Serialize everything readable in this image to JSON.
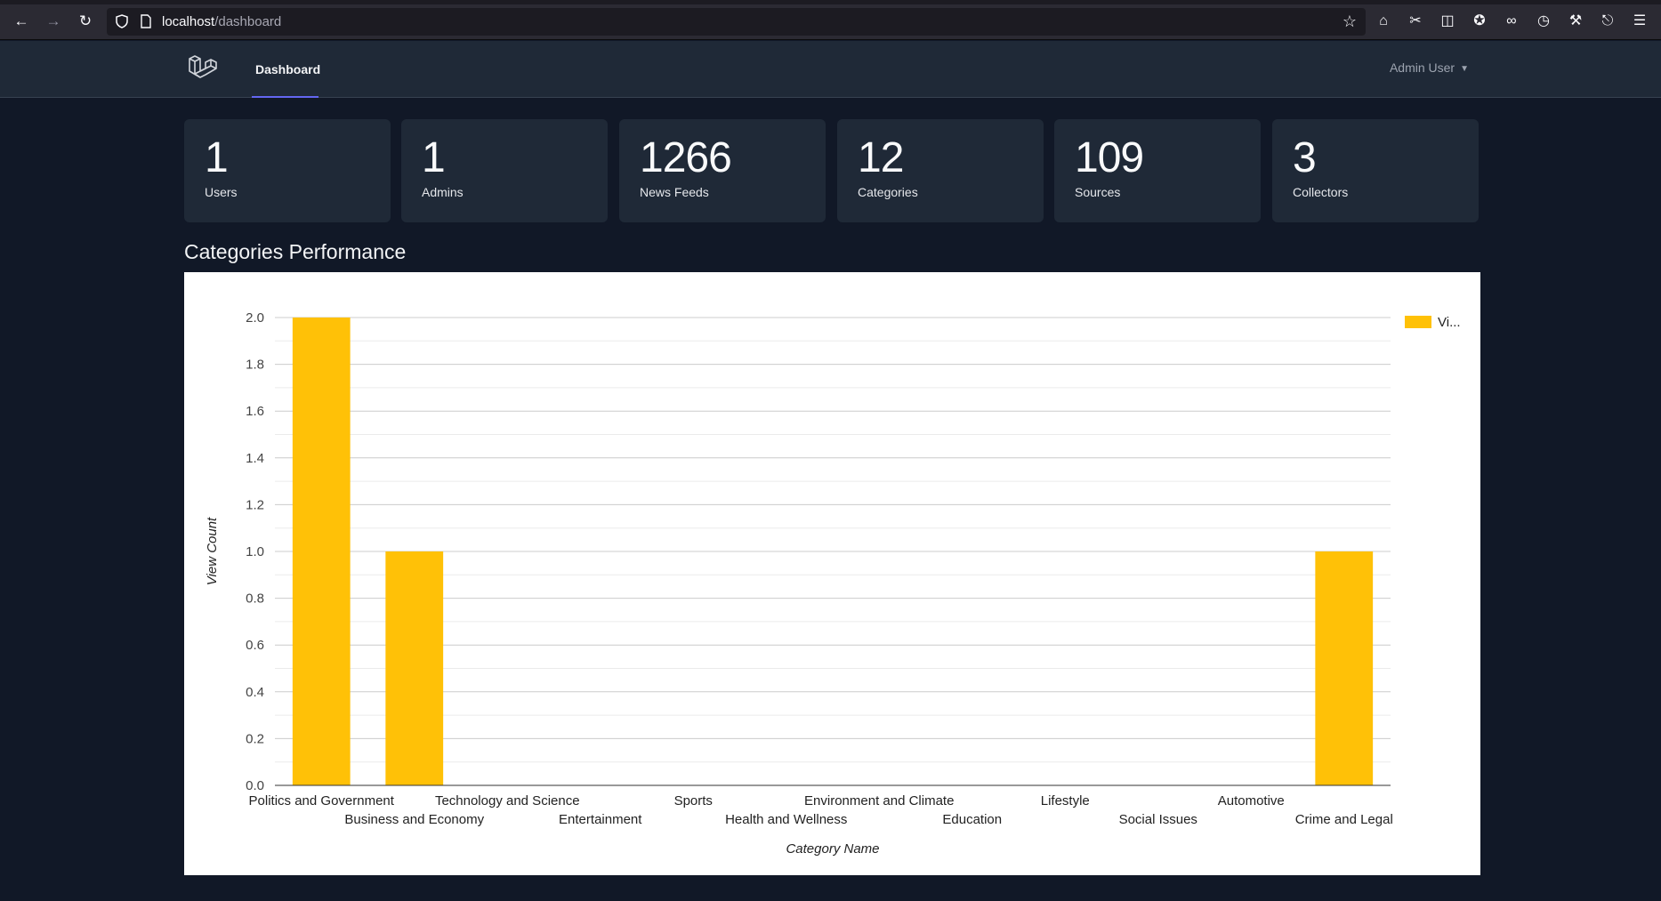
{
  "browser": {
    "url_host": "localhost",
    "url_path": "/dashboard"
  },
  "header": {
    "nav_dashboard": "Dashboard",
    "user_name": "Admin User"
  },
  "stats": [
    {
      "value": "1",
      "label": "Users"
    },
    {
      "value": "1",
      "label": "Admins"
    },
    {
      "value": "1266",
      "label": "News Feeds"
    },
    {
      "value": "12",
      "label": "Categories"
    },
    {
      "value": "109",
      "label": "Sources"
    },
    {
      "value": "3",
      "label": "Collectors"
    }
  ],
  "section_title": "Categories Performance",
  "chart_data": {
    "type": "bar",
    "categories": [
      "Politics and Government",
      "Business and Economy",
      "Technology and Science",
      "Entertainment",
      "Sports",
      "Health and Wellness",
      "Environment and Climate",
      "Education",
      "Lifestyle",
      "Social Issues",
      "Automotive",
      "Crime and Legal"
    ],
    "values": [
      2,
      1,
      0,
      0,
      0,
      0,
      0,
      0,
      0,
      0,
      0,
      1
    ],
    "series_name": "Vi...",
    "xlabel": "Category Name",
    "ylabel": "View Count",
    "ylim": [
      0,
      2
    ],
    "yticks": [
      "0.0",
      "0.2",
      "0.4",
      "0.6",
      "0.8",
      "1.0",
      "1.2",
      "1.4",
      "1.6",
      "1.8",
      "2.0"
    ],
    "bar_color": "#ffc107",
    "grid": true,
    "legend_position": "right"
  }
}
